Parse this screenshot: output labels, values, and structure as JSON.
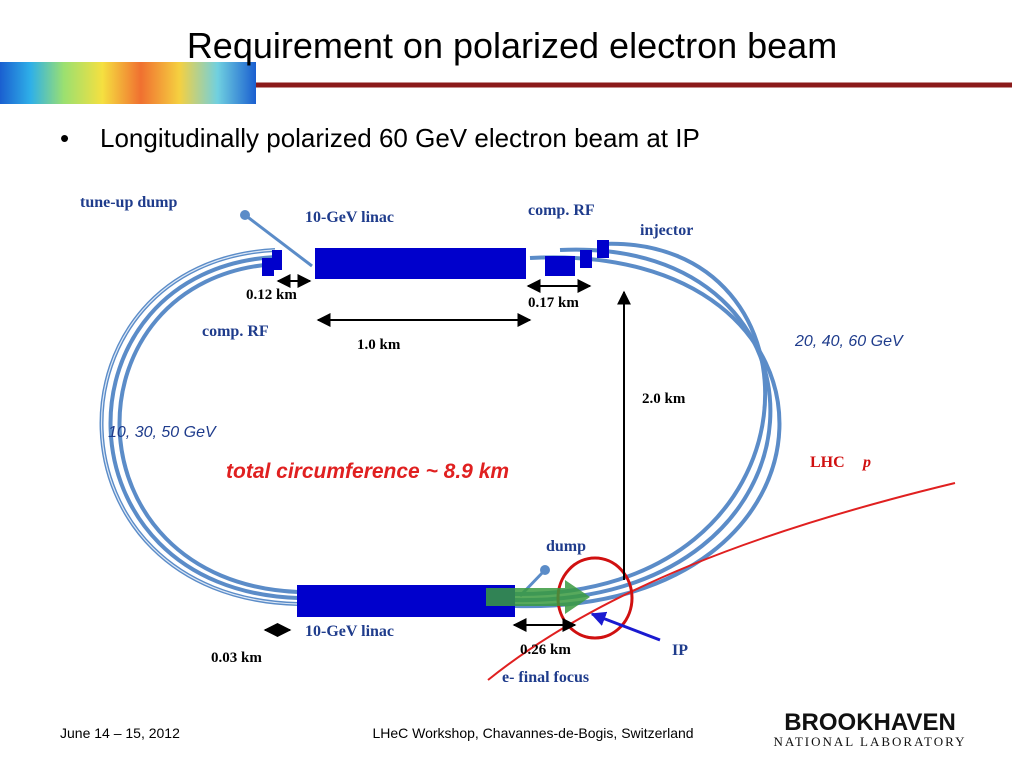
{
  "header": {
    "title": "Requirement on polarized electron beam"
  },
  "bullets": [
    "Longitudinally polarized 60 GeV electron beam at IP"
  ],
  "diagram": {
    "tune_up_dump": "tune-up dump",
    "linac_top": "10-GeV linac",
    "comp_rf_top": "comp. RF",
    "injector": "injector",
    "dist_012": "0.12 km",
    "dist_017": "0.17 km",
    "comp_rf_left": "comp. RF",
    "dist_10": "1.0 km",
    "energies_right": "20, 40, 60 GeV",
    "dist_20": "2.0 km",
    "energies_left": "10, 30, 50 GeV",
    "circumference": "total circumference ~ 8.9 km",
    "lhc": "LHC",
    "lhc_p": "p",
    "dump": "dump",
    "linac_bottom": "10-GeV linac",
    "dist_026": "0.26 km",
    "ip": "IP",
    "dist_003": "0.03 km",
    "final_focus": "e- final focus"
  },
  "footer": {
    "date": "June 14 – 15, 2012",
    "event": "LHeC Workshop, Chavannes-de-Bogis, Switzerland",
    "logo_main": "BROOKHAVEN",
    "logo_sub": "NATIONAL LABORATORY"
  }
}
